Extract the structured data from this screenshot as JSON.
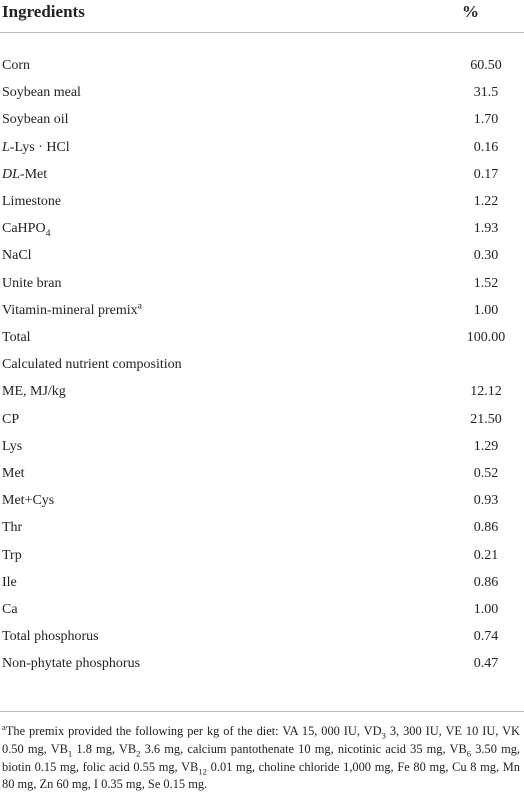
{
  "table": {
    "header": [
      "Ingredients",
      "%"
    ],
    "rows": [
      {
        "label": "Corn",
        "value": "60.50"
      },
      {
        "label": "Soybean meal",
        "value": "31.5"
      },
      {
        "label": "Soybean oil",
        "value": "1.70"
      },
      {
        "label": [
          {
            "text": "L",
            "style": "i"
          },
          {
            "text": "-Lys · HCl"
          }
        ],
        "value": "0.16"
      },
      {
        "label": [
          {
            "text": "DL",
            "style": "i"
          },
          {
            "text": "-Met"
          }
        ],
        "value": "0.17"
      },
      {
        "label": "Limestone",
        "value": "1.22"
      },
      {
        "label": [
          {
            "text": "CaHPO"
          },
          {
            "text": "4",
            "style": "sub"
          }
        ],
        "value": "1.93"
      },
      {
        "label": "NaCl",
        "value": "0.30"
      },
      {
        "label": "Unite bran",
        "value": "1.52"
      },
      {
        "label": [
          {
            "text": "Vitamin-mineral premix"
          },
          {
            "text": "a",
            "style": "sup"
          }
        ],
        "value": "1.00"
      },
      {
        "label": "Total",
        "value": "100.00"
      },
      {
        "label": "Calculated nutrient composition"
      },
      {
        "label": "ME, MJ/kg",
        "value": "12.12"
      },
      {
        "label": "CP",
        "value": "21.50"
      },
      {
        "label": "Lys",
        "value": "1.29"
      },
      {
        "label": "Met",
        "value": "0.52"
      },
      {
        "label": "Met+Cys",
        "value": "0.93"
      },
      {
        "label": "Thr",
        "value": "0.86"
      },
      {
        "label": "Trp",
        "value": "0.21"
      },
      {
        "label": "Ile",
        "value": "0.86"
      },
      {
        "label": "Ca",
        "value": "1.00"
      },
      {
        "label": "Total phosphorus",
        "value": "0.74"
      },
      {
        "label": "Non-phytate phosphorus",
        "value": "0.47"
      }
    ],
    "footnote": [
      {
        "text": "a",
        "style": "sup"
      },
      {
        "text": "The premix provided the following per kg of the diet: VA 15, 000 IU, VD"
      },
      {
        "text": "3",
        "style": "sub"
      },
      {
        "text": " 3, 300 IU, VE 10 IU, VK 0.50 mg, VB"
      },
      {
        "text": "1",
        "style": "sub"
      },
      {
        "text": " 1.8 mg, VB"
      },
      {
        "text": "2",
        "style": "sub"
      },
      {
        "text": " 3.6 mg, calcium pantothenate 10 mg, nicotinic acid 35 mg, VB"
      },
      {
        "text": "6",
        "style": "sub"
      },
      {
        "text": " 3.50 mg, biotin 0.15 mg, folic acid 0.55 mg, VB"
      },
      {
        "text": "12",
        "style": "sub"
      },
      {
        "text": " 0.01 mg, choline chloride 1,000 mg, Fe 80 mg, Cu 8 mg, Mn 80 mg, Zn 60 mg, I 0.35 mg, Se 0.15 mg."
      }
    ]
  }
}
